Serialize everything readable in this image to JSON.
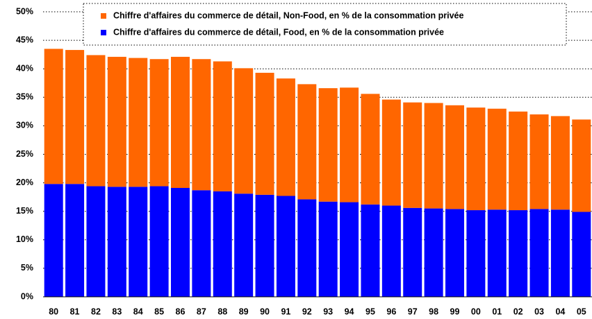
{
  "chart_data": {
    "type": "stacked_bar",
    "categories": [
      "80",
      "81",
      "82",
      "83",
      "84",
      "85",
      "86",
      "87",
      "88",
      "89",
      "90",
      "91",
      "92",
      "93",
      "94",
      "95",
      "96",
      "97",
      "98",
      "99",
      "00",
      "01",
      "02",
      "03",
      "04",
      "05"
    ],
    "series": [
      {
        "name": "Chiffre d'affaires du commerce de détail, Food, en % de la consommation privée",
        "color": "#0000ff",
        "values": [
          19.8,
          19.8,
          19.4,
          19.3,
          19.3,
          19.4,
          19.1,
          18.7,
          18.5,
          18.1,
          17.9,
          17.7,
          17.1,
          16.7,
          16.6,
          16.2,
          16.0,
          15.6,
          15.5,
          15.4,
          15.2,
          15.3,
          15.2,
          15.4,
          15.3,
          14.9
        ]
      },
      {
        "name": "Chiffre d'affaires du commerce de détail, Non-Food, en % de la consommation privée",
        "color": "#ff6600",
        "values": [
          23.7,
          23.5,
          23.0,
          22.8,
          22.6,
          22.3,
          23.0,
          23.0,
          22.8,
          22.0,
          21.4,
          20.6,
          20.2,
          19.9,
          20.1,
          19.4,
          18.6,
          18.5,
          18.5,
          18.2,
          18.0,
          17.7,
          17.3,
          16.6,
          16.4,
          16.2
        ]
      }
    ],
    "ylim": [
      0,
      50
    ],
    "yticks": [
      {
        "value": 0,
        "label": "0%"
      },
      {
        "value": 5,
        "label": "5%"
      },
      {
        "value": 10,
        "label": "10%"
      },
      {
        "value": 15,
        "label": "15%"
      },
      {
        "value": 20,
        "label": "20%"
      },
      {
        "value": 25,
        "label": "25%"
      },
      {
        "value": 30,
        "label": "30%"
      },
      {
        "value": 35,
        "label": "35%"
      },
      {
        "value": 40,
        "label": "40%"
      },
      {
        "value": 45,
        "label": "45%"
      },
      {
        "value": 50,
        "label": "50%"
      }
    ],
    "grid": true
  }
}
